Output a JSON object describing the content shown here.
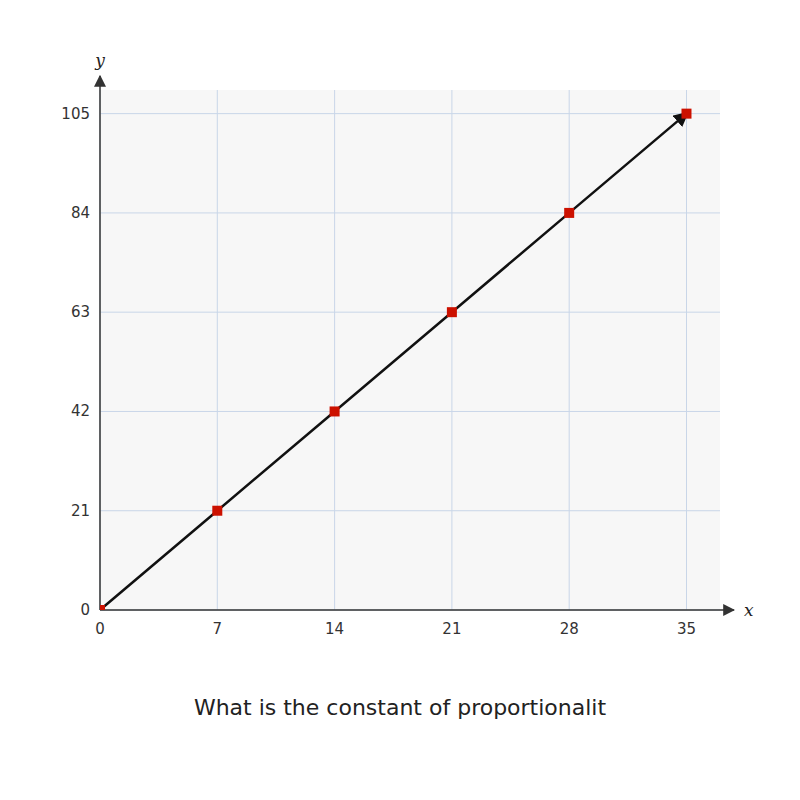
{
  "chart_data": {
    "type": "scatter",
    "xlabel": "x",
    "ylabel": "y",
    "annotations": [
      "What is the constant of proportionalit"
    ],
    "x": [
      0,
      7,
      14,
      21,
      28,
      35
    ],
    "series": [
      {
        "type": "line",
        "line_style": "arrow",
        "color": "#111111",
        "values": [
          0,
          21,
          42,
          63,
          84,
          105
        ]
      },
      {
        "type": "scatter",
        "marker": "square",
        "color": "#cc1100",
        "values": [
          0,
          21,
          42,
          63,
          84,
          105
        ]
      }
    ],
    "xlim": [
      0,
      37
    ],
    "ylim": [
      0,
      110
    ],
    "xticks": [
      0,
      7,
      14,
      21,
      28,
      35
    ],
    "yticks": [
      0,
      21,
      42,
      63,
      84,
      105
    ],
    "grid": true
  }
}
